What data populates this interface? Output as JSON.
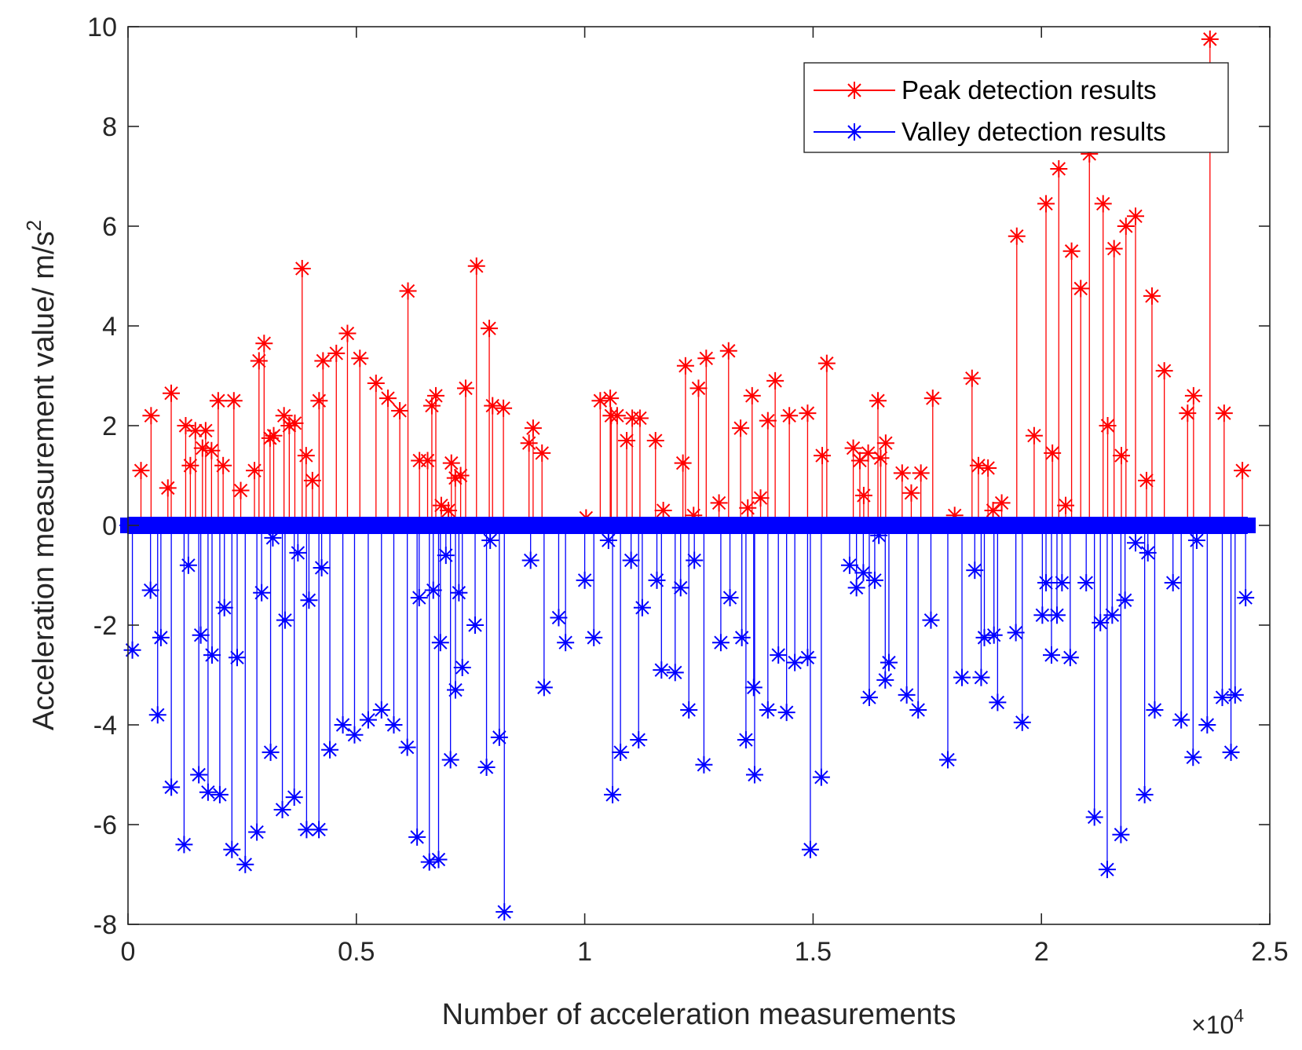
{
  "chart_data": {
    "type": "stem",
    "xlabel": "Number of acceleration measurements",
    "ylabel": "Acceleration measurement value/ m/s",
    "ylabel_superscript": "2",
    "x_exponent": "×10",
    "x_exponent_power": "4",
    "xlim": [
      0,
      2.5
    ],
    "ylim": [
      -8,
      10
    ],
    "x_ticks": [
      0,
      0.5,
      1,
      1.5,
      2,
      2.5
    ],
    "x_tick_labels": [
      "0",
      "0.5",
      "1",
      "1.5",
      "2",
      "2.5"
    ],
    "y_ticks": [
      -8,
      -6,
      -4,
      -2,
      0,
      2,
      4,
      6,
      8,
      10
    ],
    "y_tick_labels": [
      "-8",
      "-6",
      "-4",
      "-2",
      "0",
      "2",
      "4",
      "6",
      "8",
      "10"
    ],
    "grid": false,
    "legend_position": "top-right",
    "series": [
      {
        "name": "Peak detection results",
        "color": "#ff0000",
        "marker": "asterisk",
        "points": [
          [
            0.0284,
            1.1
          ],
          [
            0.0505,
            2.2
          ],
          [
            0.0873,
            0.75
          ],
          [
            0.0946,
            2.65
          ],
          [
            0.1263,
            2.0
          ],
          [
            0.1365,
            1.2
          ],
          [
            0.1475,
            1.9
          ],
          [
            0.163,
            1.55
          ],
          [
            0.17,
            1.9
          ],
          [
            0.1829,
            1.5
          ],
          [
            0.1975,
            2.5
          ],
          [
            0.2083,
            1.2
          ],
          [
            0.2318,
            2.5
          ],
          [
            0.2468,
            0.7
          ],
          [
            0.2769,
            1.1
          ],
          [
            0.2868,
            3.3
          ],
          [
            0.298,
            3.65
          ],
          [
            0.311,
            1.75
          ],
          [
            0.319,
            1.8
          ],
          [
            0.3416,
            2.2
          ],
          [
            0.3531,
            2.0
          ],
          [
            0.3653,
            2.05
          ],
          [
            0.3813,
            5.15
          ],
          [
            0.39,
            1.4
          ],
          [
            0.4038,
            0.9
          ],
          [
            0.4184,
            2.5
          ],
          [
            0.427,
            3.3
          ],
          [
            0.4561,
            3.45
          ],
          [
            0.4805,
            3.85
          ],
          [
            0.5077,
            3.35
          ],
          [
            0.543,
            2.85
          ],
          [
            0.5691,
            2.55
          ],
          [
            0.5951,
            2.3
          ],
          [
            0.613,
            4.7
          ],
          [
            0.6382,
            1.3
          ],
          [
            0.656,
            1.3
          ],
          [
            0.6653,
            2.4
          ],
          [
            0.674,
            2.6
          ],
          [
            0.6859,
            0.4
          ],
          [
            0.7016,
            0.3
          ],
          [
            0.708,
            1.25
          ],
          [
            0.7167,
            0.95
          ],
          [
            0.7283,
            1.0
          ],
          [
            0.7393,
            2.75
          ],
          [
            0.763,
            5.2
          ],
          [
            0.791,
            3.95
          ],
          [
            0.7982,
            2.4
          ],
          [
            0.822,
            2.35
          ],
          [
            0.878,
            1.65
          ],
          [
            0.887,
            1.95
          ],
          [
            0.9065,
            1.45
          ],
          [
            1.003,
            0.15
          ],
          [
            1.034,
            2.5
          ],
          [
            1.0559,
            2.55
          ],
          [
            1.058,
            2.2
          ],
          [
            1.071,
            2.2
          ],
          [
            1.0919,
            1.7
          ],
          [
            1.104,
            2.15
          ],
          [
            1.1209,
            2.15
          ],
          [
            1.155,
            1.7
          ],
          [
            1.172,
            0.3
          ],
          [
            1.215,
            1.25
          ],
          [
            1.2206,
            3.2
          ],
          [
            1.2384,
            0.2
          ],
          [
            1.2491,
            2.75
          ],
          [
            1.266,
            3.35
          ],
          [
            1.294,
            0.45
          ],
          [
            1.315,
            3.5
          ],
          [
            1.3413,
            1.95
          ],
          [
            1.357,
            0.35
          ],
          [
            1.3665,
            2.6
          ],
          [
            1.385,
            0.55
          ],
          [
            1.401,
            2.1
          ],
          [
            1.417,
            2.9
          ],
          [
            1.448,
            2.2
          ],
          [
            1.488,
            2.25
          ],
          [
            1.52,
            1.4
          ],
          [
            1.53,
            3.25
          ],
          [
            1.588,
            1.55
          ],
          [
            1.6024,
            1.3
          ],
          [
            1.6109,
            0.6
          ],
          [
            1.6207,
            1.45
          ],
          [
            1.642,
            2.5
          ],
          [
            1.648,
            1.35
          ],
          [
            1.659,
            1.65
          ],
          [
            1.695,
            1.05
          ],
          [
            1.715,
            0.65
          ],
          [
            1.736,
            1.05
          ],
          [
            1.762,
            2.55
          ],
          [
            1.81,
            0.2
          ],
          [
            1.848,
            2.95
          ],
          [
            1.862,
            1.2
          ],
          [
            1.883,
            1.15
          ],
          [
            1.894,
            0.3
          ],
          [
            1.913,
            0.45
          ],
          [
            1.946,
            5.8
          ],
          [
            1.984,
            1.8
          ],
          [
            2.01,
            6.45
          ],
          [
            2.024,
            1.45
          ],
          [
            2.038,
            7.15
          ],
          [
            2.053,
            0.4
          ],
          [
            2.066,
            5.5
          ],
          [
            2.086,
            4.75
          ],
          [
            2.105,
            7.45
          ],
          [
            2.135,
            6.45
          ],
          [
            2.145,
            2.0
          ],
          [
            2.159,
            5.55
          ],
          [
            2.175,
            1.4
          ],
          [
            2.185,
            6.0
          ],
          [
            2.206,
            6.2
          ],
          [
            2.23,
            0.9
          ],
          [
            2.242,
            4.6
          ],
          [
            2.269,
            3.1
          ],
          [
            2.32,
            2.25
          ],
          [
            2.333,
            2.6
          ],
          [
            2.369,
            9.75
          ],
          [
            2.4,
            2.25
          ],
          [
            2.44,
            1.1
          ]
        ]
      },
      {
        "name": "Valley detection results",
        "color": "#0000ff",
        "marker": "asterisk",
        "points": [
          [
            0.0096,
            -2.5
          ],
          [
            0.0493,
            -1.3
          ],
          [
            0.0649,
            -3.8
          ],
          [
            0.072,
            -2.25
          ],
          [
            0.0948,
            -5.25
          ],
          [
            0.1228,
            -6.4
          ],
          [
            0.1322,
            -0.8
          ],
          [
            0.155,
            -5.0
          ],
          [
            0.1593,
            -2.2
          ],
          [
            0.1752,
            -5.35
          ],
          [
            0.184,
            -2.6
          ],
          [
            0.201,
            -5.4
          ],
          [
            0.211,
            -1.65
          ],
          [
            0.2275,
            -6.5
          ],
          [
            0.239,
            -2.65
          ],
          [
            0.2567,
            -6.8
          ],
          [
            0.2822,
            -6.15
          ],
          [
            0.2926,
            -1.35
          ],
          [
            0.3122,
            -4.55
          ],
          [
            0.3171,
            -0.25
          ],
          [
            0.338,
            -5.7
          ],
          [
            0.3438,
            -1.9
          ],
          [
            0.364,
            -5.45
          ],
          [
            0.372,
            -0.55
          ],
          [
            0.391,
            -6.1
          ],
          [
            0.3962,
            -1.5
          ],
          [
            0.418,
            -6.1
          ],
          [
            0.424,
            -0.85
          ],
          [
            0.442,
            -4.5
          ],
          [
            0.4704,
            -4.0
          ],
          [
            0.496,
            -4.2
          ],
          [
            0.526,
            -3.9
          ],
          [
            0.555,
            -3.7
          ],
          [
            0.582,
            -4.0
          ],
          [
            0.6115,
            -4.45
          ],
          [
            0.633,
            -6.25
          ],
          [
            0.6375,
            -1.45
          ],
          [
            0.6598,
            -6.75
          ],
          [
            0.6684,
            -1.3
          ],
          [
            0.68,
            -6.7
          ],
          [
            0.684,
            -2.35
          ],
          [
            0.696,
            -0.6
          ],
          [
            0.7061,
            -4.7
          ],
          [
            0.717,
            -3.3
          ],
          [
            0.7245,
            -1.35
          ],
          [
            0.732,
            -2.85
          ],
          [
            0.76,
            -2.0
          ],
          [
            0.785,
            -4.85
          ],
          [
            0.793,
            -0.3
          ],
          [
            0.813,
            -4.25
          ],
          [
            0.824,
            -7.75
          ],
          [
            0.8815,
            -0.7
          ],
          [
            0.911,
            -3.25
          ],
          [
            0.943,
            -1.85
          ],
          [
            0.958,
            -2.35
          ],
          [
            1.0,
            -1.1
          ],
          [
            1.02,
            -2.25
          ],
          [
            1.052,
            -0.3
          ],
          [
            1.061,
            -5.4
          ],
          [
            1.0783,
            -4.55
          ],
          [
            1.1015,
            -0.7
          ],
          [
            1.118,
            -4.3
          ],
          [
            1.126,
            -1.65
          ],
          [
            1.158,
            -1.1
          ],
          [
            1.168,
            -2.9
          ],
          [
            1.198,
            -2.95
          ],
          [
            1.21,
            -1.25
          ],
          [
            1.228,
            -3.7
          ],
          [
            1.24,
            -0.7
          ],
          [
            1.261,
            -4.8
          ],
          [
            1.298,
            -2.35
          ],
          [
            1.318,
            -1.45
          ],
          [
            1.344,
            -2.25
          ],
          [
            1.353,
            -4.3
          ],
          [
            1.37,
            -3.25
          ],
          [
            1.372,
            -5.0
          ],
          [
            1.401,
            -3.7
          ],
          [
            1.424,
            -2.6
          ],
          [
            1.442,
            -3.75
          ],
          [
            1.46,
            -2.75
          ],
          [
            1.488,
            -2.65
          ],
          [
            1.494,
            -6.5
          ],
          [
            1.518,
            -5.05
          ],
          [
            1.58,
            -0.8
          ],
          [
            1.595,
            -1.25
          ],
          [
            1.61,
            -0.95
          ],
          [
            1.623,
            -3.45
          ],
          [
            1.635,
            -1.1
          ],
          [
            1.644,
            -0.2
          ],
          [
            1.658,
            -3.1
          ],
          [
            1.666,
            -2.75
          ],
          [
            1.705,
            -3.4
          ],
          [
            1.73,
            -3.7
          ],
          [
            1.758,
            -1.9
          ],
          [
            1.795,
            -4.7
          ],
          [
            1.826,
            -3.05
          ],
          [
            1.854,
            -0.9
          ],
          [
            1.868,
            -3.05
          ],
          [
            1.875,
            -2.25
          ],
          [
            1.896,
            -2.2
          ],
          [
            1.904,
            -3.55
          ],
          [
            1.944,
            -2.15
          ],
          [
            1.958,
            -3.95
          ],
          [
            2.002,
            -1.8
          ],
          [
            2.01,
            -1.15
          ],
          [
            2.022,
            -2.6
          ],
          [
            2.034,
            -1.8
          ],
          [
            2.045,
            -1.15
          ],
          [
            2.063,
            -2.65
          ],
          [
            2.098,
            -1.15
          ],
          [
            2.116,
            -5.85
          ],
          [
            2.129,
            -1.95
          ],
          [
            2.144,
            -6.9
          ],
          [
            2.155,
            -1.8
          ],
          [
            2.174,
            -6.2
          ],
          [
            2.183,
            -1.5
          ],
          [
            2.206,
            -0.35
          ],
          [
            2.226,
            -5.4
          ],
          [
            2.233,
            -0.55
          ],
          [
            2.248,
            -3.7
          ],
          [
            2.288,
            -1.15
          ],
          [
            2.306,
            -3.9
          ],
          [
            2.332,
            -4.65
          ],
          [
            2.34,
            -0.3
          ],
          [
            2.363,
            -4.0
          ],
          [
            2.396,
            -3.45
          ],
          [
            2.415,
            -4.55
          ],
          [
            2.424,
            -3.4
          ],
          [
            2.447,
            -1.45
          ]
        ]
      }
    ]
  },
  "legend": {
    "items": [
      {
        "label": "Peak detection results",
        "color": "#ff0000"
      },
      {
        "label": "Valley detection results",
        "color": "#0000ff"
      }
    ]
  }
}
